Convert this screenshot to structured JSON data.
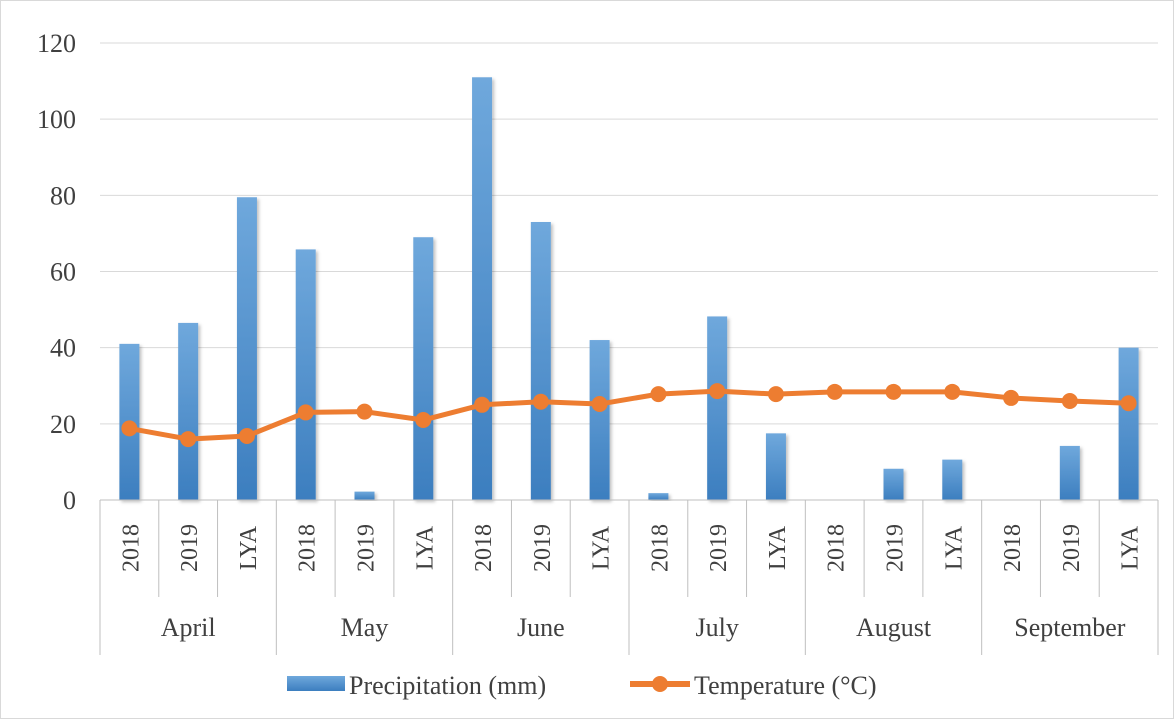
{
  "chart_data": {
    "type": "bar",
    "categories": [
      {
        "year": "2018",
        "month": "April"
      },
      {
        "year": "2019",
        "month": "April"
      },
      {
        "year": "LYA",
        "month": "April"
      },
      {
        "year": "2018",
        "month": "May"
      },
      {
        "year": "2019",
        "month": "May"
      },
      {
        "year": "LYA",
        "month": "May"
      },
      {
        "year": "2018",
        "month": "June"
      },
      {
        "year": "2019",
        "month": "June"
      },
      {
        "year": "LYA",
        "month": "June"
      },
      {
        "year": "2018",
        "month": "July"
      },
      {
        "year": "2019",
        "month": "July"
      },
      {
        "year": "LYA",
        "month": "July"
      },
      {
        "year": "2018",
        "month": "August"
      },
      {
        "year": "2019",
        "month": "August"
      },
      {
        "year": "LYA",
        "month": "August"
      },
      {
        "year": "2018",
        "month": "September"
      },
      {
        "year": "2019",
        "month": "September"
      },
      {
        "year": "LYA",
        "month": "September"
      }
    ],
    "months": [
      "April",
      "May",
      "June",
      "July",
      "August",
      "September"
    ],
    "series": [
      {
        "name": "Precipitation (mm)",
        "type": "bar",
        "color": "#5B9BD5",
        "values": [
          41,
          46.5,
          79.5,
          65.8,
          2.2,
          69,
          111,
          73,
          42,
          1.8,
          48.2,
          17.5,
          0,
          8.2,
          10.6,
          0,
          14.2,
          40
        ]
      },
      {
        "name": "Temperature (°C)",
        "type": "line",
        "color": "#ED7D31",
        "values": [
          18.8,
          16,
          16.8,
          23,
          23.2,
          21,
          25,
          25.8,
          25.2,
          27.8,
          28.6,
          27.8,
          28.4,
          28.4,
          28.4,
          26.8,
          26,
          25.4
        ]
      }
    ],
    "yticks": [
      "0",
      "20",
      "40",
      "60",
      "80",
      "100",
      "120"
    ],
    "ylim": [
      0,
      120
    ],
    "grid": true,
    "legend_position": "bottom"
  }
}
